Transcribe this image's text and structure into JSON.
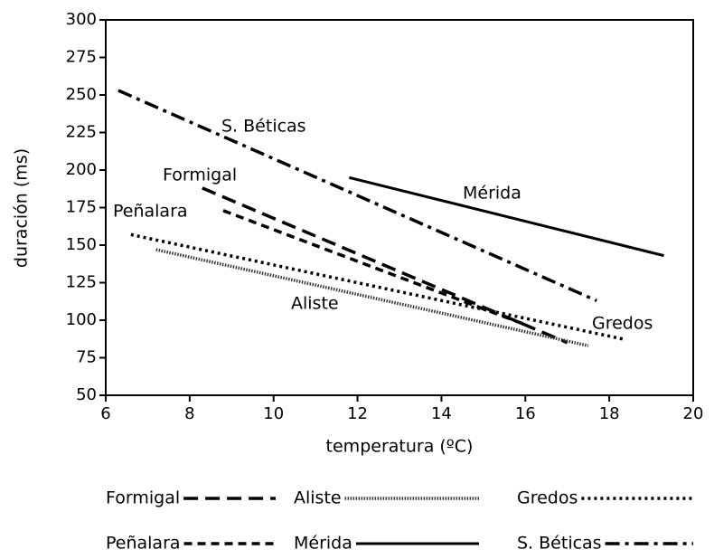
{
  "chart_data": {
    "type": "line",
    "x_label": "temperatura (ºC)",
    "y_label": "duración (ms)",
    "xlim": [
      6,
      20
    ],
    "xticks": [
      6,
      8,
      10,
      12,
      14,
      16,
      18,
      20
    ],
    "ylim": [
      50,
      300
    ],
    "yticks": [
      50,
      75,
      100,
      125,
      150,
      175,
      200,
      225,
      250,
      275,
      300
    ],
    "series": [
      {
        "name": "Formigal",
        "color": "#000000",
        "dash": "long-dash",
        "x": [
          8.3,
          17.0
        ],
        "values": [
          188,
          85
        ]
      },
      {
        "name": "Peñalara",
        "color": "#000000",
        "dash": "short-dash",
        "x": [
          8.8,
          16.0
        ],
        "values": [
          173,
          97
        ]
      },
      {
        "name": "Aliste",
        "color": "#333333",
        "dash": "fine-dotted",
        "x": [
          7.2,
          17.5
        ],
        "values": [
          147,
          83
        ]
      },
      {
        "name": "Mérida",
        "color": "#000000",
        "dash": "solid",
        "x": [
          11.8,
          19.3
        ],
        "values": [
          195,
          143
        ]
      },
      {
        "name": "Gredos",
        "color": "#000000",
        "dash": "dotted",
        "x": [
          6.6,
          18.4
        ],
        "values": [
          157,
          87
        ]
      },
      {
        "name": "S. Béticas",
        "color": "#000000",
        "dash": "dash-dot",
        "x": [
          6.3,
          17.7
        ],
        "values": [
          253,
          113
        ]
      }
    ],
    "annotations": [
      "Formigal",
      "Peñalara",
      "Aliste",
      "Mérida",
      "Gredos",
      "S. Béticas"
    ]
  }
}
